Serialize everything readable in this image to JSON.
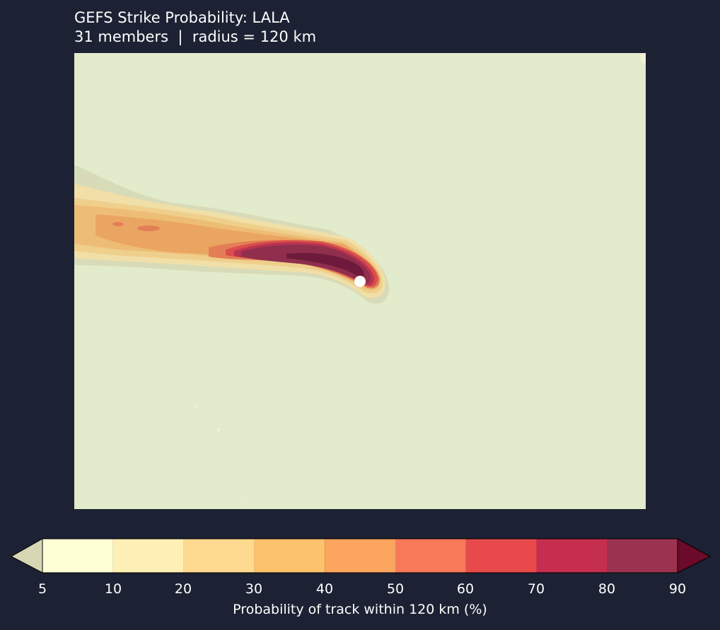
{
  "title": {
    "line1": "GEFS Strike Probability: LALA",
    "line2": "31 members  |  radius = 120 km"
  },
  "colors": {
    "background": "#1c2133",
    "land": "#e2ebcb",
    "storm_marker": "#ffffff"
  },
  "colorbar": {
    "label": "Probability of track within 120 km (%)",
    "levels": [
      "5",
      "10",
      "20",
      "30",
      "40",
      "50",
      "60",
      "70",
      "80",
      "90"
    ],
    "under_color": "#d9d6b4",
    "over_color": "#6b0a2a",
    "bin_colors": [
      "#ffffd6",
      "#feefb4",
      "#fdda8f",
      "#fdc26c",
      "#fba55f",
      "#f7795a",
      "#e84a4b",
      "#c52e4f",
      "#9b3350"
    ]
  }
}
